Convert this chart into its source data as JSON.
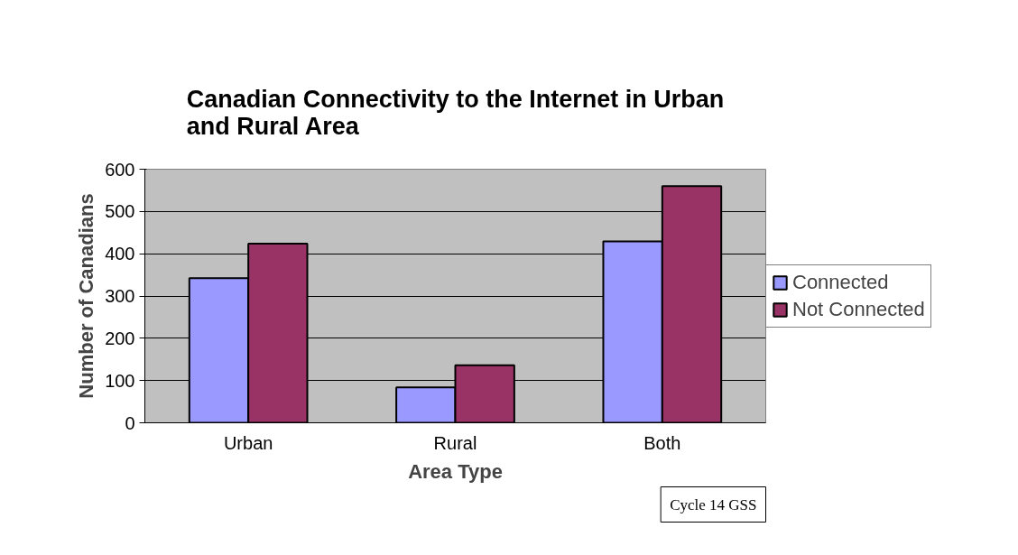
{
  "chart_data": {
    "type": "bar",
    "title": "Canadian Connectivity to the Internet in Urban\nand Rural Area",
    "xlabel": "Area Type",
    "ylabel": "Number of Canadians",
    "categories": [
      "Urban",
      "Rural",
      "Both"
    ],
    "series": [
      {
        "name": "Connected",
        "color": "#9999ff",
        "values": [
          342,
          84,
          429
        ]
      },
      {
        "name": "Not Connected",
        "color": "#993366",
        "values": [
          424,
          136,
          560
        ]
      }
    ],
    "ylim": [
      0,
      600
    ],
    "yticks": [
      0,
      100,
      200,
      300,
      400,
      500,
      600
    ],
    "grid": "y",
    "legend": "right",
    "annotations": [
      "Cycle 14 GSS"
    ]
  }
}
